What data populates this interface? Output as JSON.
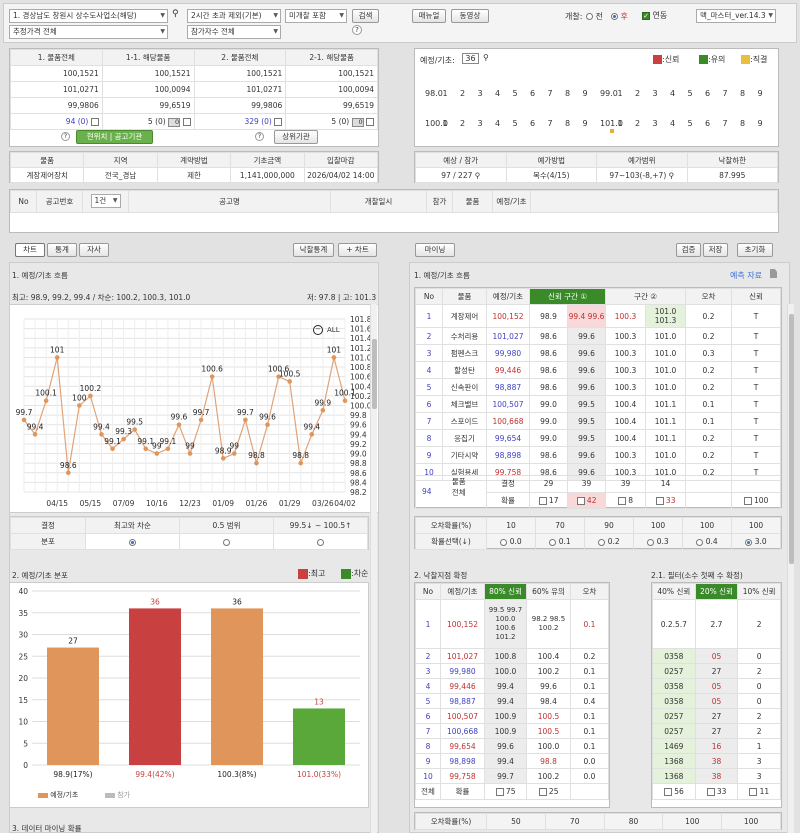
{
  "top": {
    "region": "1. 경상남도 창원시 상수도사업소(해당)",
    "price_select": "추정가격 전체",
    "time_select": "2시간 초과 제외(기본)",
    "include_select": "미개찰 포함",
    "search": "검색",
    "participants": "참가자수 전체",
    "manual": "매뉴얼",
    "video": "동영상",
    "open_label": "개찰:",
    "before": "전",
    "after": "후",
    "linked": "연동",
    "version": "맥_마스터_ver.14.3"
  },
  "rates": {
    "headers": [
      "1. 물품전체",
      "1-1. 해당물품",
      "2. 물품전체",
      "2-1. 해당물품"
    ],
    "rows": [
      [
        "100,1521",
        "100,1521",
        "100,1521",
        "100,1521"
      ],
      [
        "101,0271",
        "100,0094",
        "101,0271",
        "100,0094"
      ],
      [
        "99,9806",
        "99,6519",
        "99,9806",
        "99,6519"
      ]
    ],
    "counts": [
      "94",
      "(0)",
      "5",
      "(0)",
      "0",
      "329",
      "(0)",
      "5",
      "(0)",
      "0"
    ],
    "btn_rank": "현위치 | 공고기관",
    "btn_upper": "상위기관"
  },
  "info": {
    "headers": [
      "물품",
      "지역",
      "계약방법",
      "기초금액",
      "입찰마감"
    ],
    "values": [
      "계장제어장치",
      "전국_경남",
      "제한",
      "1,141,000,000",
      "2026/04/02 14:00"
    ]
  },
  "bid": {
    "headers": [
      "예상 / 참가",
      "예가방법",
      "예가범위",
      "낙찰하한"
    ],
    "values": [
      "97 / 227",
      "복수(4/15)",
      "97~103(-8,+7)",
      "87.995"
    ]
  },
  "ratio": {
    "label": "예정/기초:",
    "value": "36",
    "leg": [
      ":신뢰",
      ":유의",
      ":직결"
    ],
    "row1": [
      "98.0",
      "1",
      "2",
      "3",
      "4",
      "5",
      "6",
      "7",
      "8",
      "9",
      "99.0",
      "1",
      "2",
      "3",
      "4",
      "5",
      "6",
      "7",
      "8",
      "9"
    ],
    "row2": [
      "100.0",
      "1",
      "2",
      "3",
      "4",
      "5",
      "6",
      "7",
      "8",
      "9",
      "101.0",
      "1",
      "2",
      "3",
      "4",
      "5",
      "6",
      "7",
      "8",
      "9"
    ]
  },
  "bidtbl": {
    "headers": [
      "No",
      "공고번호",
      "1건",
      "공고명",
      "개찰일시",
      "참가",
      "물품",
      "예정/기초"
    ]
  },
  "ltabs": [
    "차트",
    "통계",
    "자사"
  ],
  "lbtn": [
    "낙찰통계",
    "+ 차트"
  ],
  "rtab": "마이닝",
  "rbtn": [
    "검증",
    "저장",
    "초기화"
  ],
  "chart1": {
    "title": "1. 예정/기초 흐름",
    "summary": "최고: 98.9, 99.2, 99.4 / 차순: 100.2, 100.3, 101.0",
    "low": "저: 97.8 | 고: 101.3",
    "all": "ALL"
  },
  "chart_data": [
    {
      "type": "line",
      "title": "1. 예정/기초 흐름",
      "x": [
        "",
        "",
        "",
        "04/15",
        "",
        "",
        "05/15",
        "",
        "",
        "07/09",
        "",
        "",
        "10/16",
        "",
        "",
        "12/23",
        "",
        "",
        "01/09",
        "",
        "",
        "01/26",
        "",
        "",
        "01/29",
        "",
        "",
        "03/26",
        "",
        "04/02"
      ],
      "values": [
        99.7,
        99.4,
        100.1,
        101,
        98.6,
        100,
        100.2,
        99.4,
        99.1,
        99.3,
        99.5,
        99.1,
        99,
        99.1,
        99.6,
        99,
        99.7,
        100.6,
        98.9,
        99,
        99.7,
        98.8,
        99.6,
        100.6,
        100.5,
        98.8,
        99.4,
        99.9,
        101,
        100.1
      ],
      "ylim": [
        98.2,
        101.8
      ]
    },
    {
      "type": "bar",
      "title": "2. 예정/기초 분포",
      "categories": [
        "98.9(17%)",
        "99.4(42%)",
        "100.3(8%)",
        "101.0(33%)"
      ],
      "values": [
        27,
        36,
        36,
        13
      ],
      "ylim": [
        0,
        40
      ]
    }
  ],
  "dist": {
    "h1": "결정",
    "h2": "최고와 차순",
    "h3": "0.5 범위",
    "h4": "99.5↓ ~ 100.5↑",
    "r": "분포"
  },
  "chart2": {
    "title": "2. 예정/기초 분포",
    "leg1": ":최고",
    "leg2": ":차순",
    "legA": "예정/기초",
    "legB": "참가"
  },
  "chart3": "3. 데이터 마이닝 확률",
  "flow": {
    "title": "1. 예정/기초 흐름",
    "link": "예측 자료",
    "headers": [
      "No",
      "물품",
      "예정/기초",
      "신뢰 구간 ①",
      "구간 ②",
      "오차",
      "신뢰"
    ],
    "rows": [
      [
        "1",
        "계장제어",
        "100,152",
        "98.9",
        "99.4 99.6",
        "100.3",
        "101.0 101.3",
        "0.2",
        "T"
      ],
      [
        "2",
        "수처리용",
        "101,027",
        "98.6",
        "99.6",
        "100.3",
        "101.0",
        "0.2",
        "T"
      ],
      [
        "3",
        "펌펜스크",
        "99,980",
        "98.6",
        "99.6",
        "100.3",
        "101.0",
        "0.3",
        "T"
      ],
      [
        "4",
        "할성탄",
        "99,446",
        "98.6",
        "99.6",
        "100.3",
        "101.0",
        "0.2",
        "T"
      ],
      [
        "5",
        "신속판이",
        "98,887",
        "98.6",
        "99.6",
        "100.3",
        "101.0",
        "0.2",
        "T"
      ],
      [
        "6",
        "체크밸브",
        "100,507",
        "99.0",
        "99.5",
        "100.4",
        "101.1",
        "0.1",
        "T"
      ],
      [
        "7",
        "스포이드",
        "100,668",
        "99.0",
        "99.5",
        "100.4",
        "101.1",
        "0.1",
        "T"
      ],
      [
        "8",
        "응집기",
        "99,654",
        "99.0",
        "99.5",
        "100.4",
        "101.1",
        "0.2",
        "T"
      ],
      [
        "9",
        "기타시약",
        "98,898",
        "98.6",
        "99.6",
        "100.3",
        "101.0",
        "0.2",
        "T"
      ],
      [
        "10",
        "실험용세",
        "99,758",
        "98.6",
        "99.6",
        "100.3",
        "101.0",
        "0.2",
        "T"
      ]
    ],
    "foot_n": "94",
    "foot1": "물품",
    "foot2": "전체",
    "decide": "결정",
    "prob": "확률",
    "fv": [
      "29",
      "39",
      "39",
      "14"
    ],
    "fc": [
      "17",
      "42",
      "8",
      "33",
      "100"
    ],
    "err": "오차확률(%)",
    "errv": [
      "10",
      "70",
      "90",
      "100",
      "100",
      "100"
    ],
    "psel": "확률선택(↓)",
    "pv": [
      "0.0",
      "0.1",
      "0.2",
      "0.3",
      "0.4",
      "3.0"
    ]
  },
  "conf": {
    "title": "2. 낙찰지점 확정",
    "headers": [
      "No",
      "예정/기초",
      "80% 신뢰",
      "60% 유의",
      "오차"
    ],
    "r1": [
      "1",
      "100,152",
      "99.5 99.7 100.0 100.6 101.2",
      "98.2 98.5 100.2",
      "0.1"
    ],
    "rows": [
      [
        "2",
        "101,027",
        "100.8",
        "100.4",
        "0.2"
      ],
      [
        "3",
        "99,980",
        "100.0",
        "100.2",
        "0.1"
      ],
      [
        "4",
        "99,446",
        "99.4",
        "99.6",
        "0.1"
      ],
      [
        "5",
        "98,887",
        "99.4",
        "98.4",
        "0.4"
      ],
      [
        "6",
        "100,507",
        "100.9",
        "100.5",
        "0.1"
      ],
      [
        "7",
        "100,668",
        "100.9",
        "100.5",
        "0.1"
      ],
      [
        "8",
        "99,654",
        "99.6",
        "100.0",
        "0.1"
      ],
      [
        "9",
        "98,898",
        "99.4",
        "98.8",
        "0.0"
      ],
      [
        "10",
        "99,758",
        "99.7",
        "100.2",
        "0.0"
      ]
    ],
    "foot": [
      "전체",
      "확률",
      "75",
      "25"
    ]
  },
  "filter": {
    "title": "2.1. 필터(소수 첫째 수 확정)",
    "headers": [
      "40% 신뢰",
      "20% 신뢰",
      "10% 신뢰"
    ],
    "r1": [
      "0.2.5.7",
      "2.7",
      "2"
    ],
    "rows": [
      [
        "0358",
        "05",
        "0"
      ],
      [
        "0257",
        "27",
        "2"
      ],
      [
        "0358",
        "05",
        "0"
      ],
      [
        "0358",
        "05",
        "0"
      ],
      [
        "0257",
        "27",
        "2"
      ],
      [
        "0257",
        "27",
        "2"
      ],
      [
        "1469",
        "16",
        "1"
      ],
      [
        "1368",
        "38",
        "3"
      ],
      [
        "1368",
        "38",
        "3"
      ]
    ],
    "foot": [
      "56",
      "33",
      "11"
    ]
  },
  "errb": {
    "label": "오차확률(%)",
    "v": [
      "50",
      "70",
      "80",
      "100",
      "100"
    ]
  }
}
